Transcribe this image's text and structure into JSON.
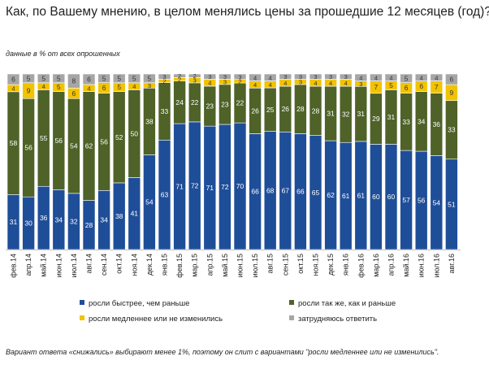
{
  "title": "Как, по Вашему мнению, в целом менялись цены за прошедшие  12 месяцев (год)?",
  "subtitle": "данные в % от всех опрошенных",
  "note": "Вариант ответа «снижались» выбирают менее 1%, поэтому он слит с вариантами \"росли медленнее или не изменились\".",
  "chart_data": {
    "type": "bar",
    "stacked": true,
    "unit": "%",
    "categories": [
      "фев.14",
      "апр.14",
      "май.14",
      "июн.14",
      "июл.14",
      "авг.14",
      "сен.14",
      "окт.14",
      "ноя.14",
      "дек.14",
      "янв.15",
      "фев.15",
      "мар.15",
      "апр.15",
      "май.15",
      "июн.15",
      "июл.15",
      "авг.15",
      "сен.15",
      "окт.15",
      "ноя.15",
      "дек.15",
      "янв.16",
      "фев.16",
      "мар.16",
      "апр.16",
      "май.16",
      "июн.16",
      "июл.16",
      "авг.16"
    ],
    "series": [
      {
        "name": "росли быстрее, чем раньше",
        "color": "#1f4e99",
        "values": [
          31,
          30,
          36,
          34,
          32,
          28,
          34,
          38,
          41,
          54,
          63,
          71,
          72,
          71,
          72,
          70,
          66,
          68,
          67,
          66,
          65,
          62,
          61,
          61,
          60,
          60,
          57,
          56,
          54,
          51
        ]
      },
      {
        "name": "росли так же, как и раньше",
        "color": "#4f6228",
        "values": [
          58,
          56,
          55,
          56,
          54,
          62,
          56,
          52,
          50,
          38,
          33,
          24,
          22,
          23,
          23,
          22,
          26,
          25,
          26,
          28,
          28,
          31,
          32,
          31,
          29,
          31,
          33,
          34,
          36,
          33
        ]
      },
      {
        "name": "росли медленнее  или не изменились",
        "color": "#f2c300",
        "values": [
          4,
          9,
          4,
          5,
          6,
          4,
          6,
          5,
          4,
          3,
          2,
          2,
          3,
          4,
          3,
          2,
          4,
          4,
          4,
          3,
          4,
          4,
          4,
          3,
          7,
          5,
          6,
          6,
          7,
          9
        ]
      },
      {
        "name": "затрудняюсь ответить",
        "color": "#a6a6a6",
        "values": [
          6,
          5,
          5,
          5,
          8,
          6,
          5,
          5,
          5,
          5,
          3,
          2,
          2,
          3,
          3,
          3,
          4,
          4,
          3,
          3,
          3,
          3,
          3,
          4,
          4,
          4,
          5,
          4,
          4,
          6
        ]
      }
    ],
    "ylim": [
      0,
      100
    ],
    "grid": false,
    "legend_position": "bottom"
  }
}
